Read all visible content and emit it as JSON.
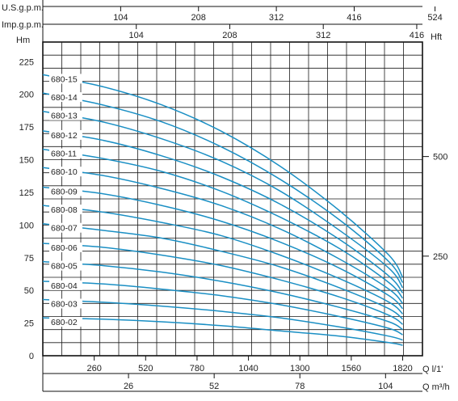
{
  "chart_data": {
    "type": "line",
    "title": "",
    "labels": {
      "us_gpm": "U.S.g.p.m.",
      "imp_gpm": "Imp.g.p.m.",
      "head_m": "Hm",
      "head_ft": "Hft",
      "flow_lmin": "Q l/1'",
      "flow_m3h": "Q m³/h"
    },
    "axes": {
      "flow_lmin": {
        "ticks": [
          260,
          520,
          780,
          1040,
          1300,
          1560,
          1820
        ],
        "range": [
          0,
          1920
        ]
      },
      "flow_m3h": {
        "ticks": [
          26,
          52,
          78,
          104
        ]
      },
      "us_gpm": {
        "ticks": [
          104,
          208,
          312,
          416,
          524
        ]
      },
      "imp_gpm": {
        "ticks": [
          104,
          208,
          312,
          416
        ]
      },
      "head_m": {
        "ticks": [
          0,
          25,
          50,
          75,
          100,
          125,
          150,
          175,
          200,
          225
        ],
        "range": [
          0,
          240
        ]
      },
      "head_ft": {
        "ticks": [
          250,
          500
        ]
      }
    },
    "grid": true,
    "series_color": "#1a8fc4",
    "series": [
      {
        "name": "680-15",
        "x": [
          0,
          300,
          600,
          900,
          1200,
          1500,
          1750,
          1820
        ],
        "y": [
          215,
          206,
          192,
          172,
          145,
          111,
          77,
          60
        ]
      },
      {
        "name": "680-14",
        "x": [
          0,
          300,
          600,
          900,
          1200,
          1500,
          1750,
          1820
        ],
        "y": [
          201,
          192,
          179,
          160,
          135,
          104,
          72,
          56
        ]
      },
      {
        "name": "680-13",
        "x": [
          0,
          300,
          600,
          900,
          1200,
          1500,
          1750,
          1820
        ],
        "y": [
          187,
          179,
          166,
          149,
          126,
          96,
          67,
          52
        ]
      },
      {
        "name": "680-12",
        "x": [
          0,
          300,
          600,
          900,
          1200,
          1500,
          1750,
          1820
        ],
        "y": [
          172,
          165,
          153,
          137,
          116,
          89,
          61,
          48
        ]
      },
      {
        "name": "680-11",
        "x": [
          0,
          300,
          600,
          900,
          1200,
          1500,
          1750,
          1820
        ],
        "y": [
          158,
          151,
          141,
          126,
          106,
          82,
          56,
          44
        ]
      },
      {
        "name": "680-10",
        "x": [
          0,
          300,
          600,
          900,
          1200,
          1500,
          1750,
          1820
        ],
        "y": [
          144,
          138,
          128,
          115,
          97,
          74,
          51,
          40
        ]
      },
      {
        "name": "680-09",
        "x": [
          0,
          300,
          600,
          900,
          1200,
          1500,
          1750,
          1820
        ],
        "y": [
          129,
          124,
          115,
          103,
          87,
          67,
          46,
          36
        ]
      },
      {
        "name": "680-08",
        "x": [
          0,
          300,
          600,
          900,
          1200,
          1500,
          1750,
          1820
        ],
        "y": [
          115,
          110,
          102,
          92,
          77,
          59,
          41,
          32
        ]
      },
      {
        "name": "680-07",
        "x": [
          0,
          300,
          600,
          900,
          1200,
          1500,
          1750,
          1820
        ],
        "y": [
          101,
          96,
          90,
          80,
          68,
          52,
          36,
          28
        ]
      },
      {
        "name": "680-06",
        "x": [
          0,
          300,
          600,
          900,
          1200,
          1500,
          1750,
          1820
        ],
        "y": [
          86,
          83,
          77,
          69,
          58,
          45,
          31,
          24
        ]
      },
      {
        "name": "680-05",
        "x": [
          0,
          300,
          600,
          900,
          1200,
          1500,
          1750,
          1820
        ],
        "y": [
          72,
          69,
          64,
          57,
          48,
          37,
          26,
          20
        ]
      },
      {
        "name": "680-04",
        "x": [
          0,
          300,
          600,
          900,
          1200,
          1500,
          1750,
          1820
        ],
        "y": [
          57,
          55,
          51,
          46,
          39,
          30,
          21,
          16
        ]
      },
      {
        "name": "680-03",
        "x": [
          0,
          300,
          600,
          900,
          1200,
          1500,
          1750,
          1820
        ],
        "y": [
          43,
          41,
          38,
          34,
          29,
          22,
          15,
          12
        ]
      },
      {
        "name": "680-02",
        "x": [
          0,
          300,
          600,
          900,
          1200,
          1500,
          1750,
          1820
        ],
        "y": [
          29,
          28,
          26,
          23,
          19,
          15,
          10,
          8
        ]
      }
    ]
  }
}
